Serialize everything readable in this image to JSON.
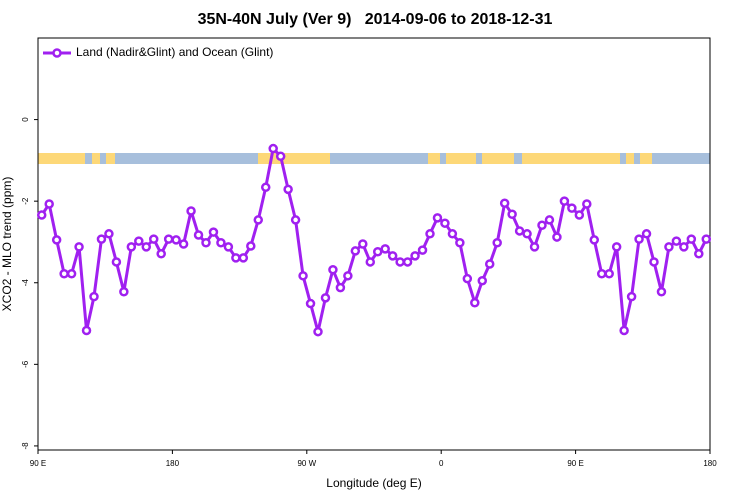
{
  "chart_data": {
    "type": "line",
    "title": "35N-40N July (Ver 9)   2014-09-06 to 2018-12-31",
    "xlabel": "Longitude (deg E)",
    "ylabel": "XCO2 - MLO trend (ppm)",
    "xlim": [
      90,
      540
    ],
    "xticks": [
      {
        "value": 90,
        "label": "90 E"
      },
      {
        "value": 180,
        "label": "180"
      },
      {
        "value": 270,
        "label": "90 W"
      },
      {
        "value": 360,
        "label": "0"
      },
      {
        "value": 450,
        "label": "90 E"
      },
      {
        "value": 540,
        "label": "180"
      }
    ],
    "ylim": [
      -8.1,
      2
    ],
    "yticks": [
      0,
      -2,
      -4,
      -6,
      -8
    ],
    "grid": false,
    "legend": "top-left",
    "x": [
      92.5,
      97.5,
      102.5,
      107.5,
      112.5,
      117.5,
      122.5,
      127.5,
      132.5,
      137.5,
      142.5,
      147.5,
      152.5,
      157.5,
      162.5,
      167.5,
      172.5,
      177.5,
      182.5,
      187.5,
      192.5,
      197.5,
      202.5,
      207.5,
      212.5,
      217.5,
      222.5,
      227.5,
      232.5,
      237.5,
      242.5,
      247.5,
      252.5,
      257.5,
      262.5,
      267.5,
      272.5,
      277.5,
      282.5,
      287.5,
      292.5,
      297.5,
      302.5,
      307.5,
      312.5,
      317.5,
      322.5,
      327.5,
      332.5,
      337.5,
      342.5,
      347.5,
      352.5,
      357.5,
      362.5,
      367.5,
      372.5,
      377.5,
      382.5,
      387.5,
      392.5,
      397.5,
      402.5,
      407.5,
      412.5,
      417.5,
      422.5,
      427.5,
      432.5,
      437.5,
      442.5,
      447.5,
      452.5,
      457.5,
      462.5,
      467.5,
      472.5,
      477.5,
      482.5,
      487.5,
      492.5,
      497.5,
      502.5,
      507.5,
      512.5,
      517.5,
      522.5,
      527.5,
      532.5,
      537.5
    ],
    "series": [
      {
        "name": "Land (Nadir&Glint) and Ocean (Glint)",
        "color": "#a020f0",
        "values": [
          -2.34,
          -2.07,
          -2.95,
          -3.78,
          -3.78,
          -3.12,
          -5.17,
          -4.34,
          -2.93,
          -2.8,
          -3.49,
          -4.22,
          -3.12,
          -2.98,
          -3.12,
          -2.93,
          -3.29,
          -2.93,
          -2.95,
          -3.05,
          -2.24,
          -2.83,
          -3.02,
          -2.76,
          -3.02,
          -3.12,
          -3.39,
          -3.39,
          -3.1,
          -2.46,
          -1.66,
          -0.71,
          -0.9,
          -1.71,
          -2.46,
          -3.83,
          -4.51,
          -5.2,
          -4.37,
          -3.68,
          -4.12,
          -3.83,
          -3.22,
          -3.05,
          -3.49,
          -3.24,
          -3.17,
          -3.34,
          -3.49,
          -3.49,
          -3.34,
          -3.2,
          -2.8,
          -2.41,
          -2.54,
          -2.8,
          -3.02,
          -3.9,
          -4.49,
          -3.95,
          -3.54,
          -3.02,
          -2.05,
          -2.32,
          -2.73,
          -2.8,
          -3.12,
          -2.59,
          -2.46,
          -2.88,
          -2.0,
          -2.17,
          -2.34,
          -2.07,
          -2.95,
          -3.78,
          -3.78,
          -3.12,
          -5.17,
          -4.34,
          -2.93,
          -2.8,
          -3.49,
          -4.22,
          -3.12,
          -2.98,
          -3.12,
          -2.93,
          -3.29,
          -2.93
        ]
      }
    ]
  }
}
